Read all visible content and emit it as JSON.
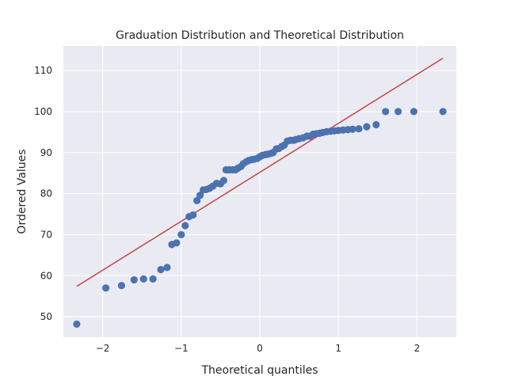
{
  "chart_data": {
    "type": "scatter",
    "title": "Graduation Distribution and Theoretical Distribution",
    "xlabel": "Theoretical quantiles",
    "ylabel": "Ordered Values",
    "xlim": [
      -2.5,
      2.5
    ],
    "ylim": [
      45,
      116
    ],
    "xticks": [
      -2,
      -1,
      0,
      1,
      2
    ],
    "xtick_labels": [
      "−2",
      "−1",
      "0",
      "1",
      "2"
    ],
    "yticks": [
      50,
      60,
      70,
      80,
      90,
      100,
      110
    ],
    "ytick_labels": [
      "50",
      "60",
      "70",
      "80",
      "90",
      "100",
      "110"
    ],
    "grid": true,
    "background": "#eaeaf2",
    "marker_color": "#4c72b0",
    "line_color": "#c44e52",
    "points": [
      [
        -2.33,
        48.2
      ],
      [
        -1.96,
        57.0
      ],
      [
        -1.76,
        57.6
      ],
      [
        -1.6,
        59.0
      ],
      [
        -1.48,
        59.2
      ],
      [
        -1.36,
        59.2
      ],
      [
        -1.26,
        61.5
      ],
      [
        -1.18,
        62.0
      ],
      [
        -1.12,
        67.6
      ],
      [
        -1.06,
        68.0
      ],
      [
        -1.0,
        70.0
      ],
      [
        -0.95,
        72.2
      ],
      [
        -0.9,
        74.4
      ],
      [
        -0.85,
        74.8
      ],
      [
        -0.8,
        78.3
      ],
      [
        -0.76,
        79.6
      ],
      [
        -0.72,
        80.9
      ],
      [
        -0.68,
        81.0
      ],
      [
        -0.64,
        81.3
      ],
      [
        -0.6,
        81.8
      ],
      [
        -0.55,
        82.5
      ],
      [
        -0.5,
        82.4
      ],
      [
        -0.46,
        83.2
      ],
      [
        -0.43,
        85.8
      ],
      [
        -0.39,
        85.8
      ],
      [
        -0.35,
        85.8
      ],
      [
        -0.31,
        85.8
      ],
      [
        -0.28,
        86.2
      ],
      [
        -0.24,
        86.6
      ],
      [
        -0.21,
        87.3
      ],
      [
        -0.17,
        87.8
      ],
      [
        -0.14,
        88.1
      ],
      [
        -0.1,
        88.3
      ],
      [
        -0.07,
        88.4
      ],
      [
        -0.03,
        88.6
      ],
      [
        0.0,
        89.0
      ],
      [
        0.03,
        89.3
      ],
      [
        0.07,
        89.5
      ],
      [
        0.1,
        89.6
      ],
      [
        0.14,
        89.8
      ],
      [
        0.17,
        90.0
      ],
      [
        0.21,
        90.9
      ],
      [
        0.24,
        91.0
      ],
      [
        0.28,
        91.5
      ],
      [
        0.31,
        91.8
      ],
      [
        0.35,
        92.8
      ],
      [
        0.39,
        93.0
      ],
      [
        0.43,
        93.0
      ],
      [
        0.46,
        93.2
      ],
      [
        0.5,
        93.4
      ],
      [
        0.55,
        93.6
      ],
      [
        0.6,
        94.0
      ],
      [
        0.64,
        94.0
      ],
      [
        0.68,
        94.5
      ],
      [
        0.72,
        94.6
      ],
      [
        0.76,
        94.7
      ],
      [
        0.8,
        94.9
      ],
      [
        0.85,
        95.1
      ],
      [
        0.9,
        95.2
      ],
      [
        0.95,
        95.3
      ],
      [
        1.0,
        95.4
      ],
      [
        1.06,
        95.5
      ],
      [
        1.12,
        95.6
      ],
      [
        1.18,
        95.7
      ],
      [
        1.26,
        95.8
      ],
      [
        1.36,
        96.3
      ],
      [
        1.48,
        96.8
      ],
      [
        1.6,
        100.0
      ],
      [
        1.76,
        100.0
      ],
      [
        1.96,
        100.0
      ],
      [
        2.33,
        100.0
      ]
    ],
    "fit_line": {
      "x": [
        -2.33,
        2.33
      ],
      "y": [
        57.4,
        113.0
      ]
    }
  }
}
